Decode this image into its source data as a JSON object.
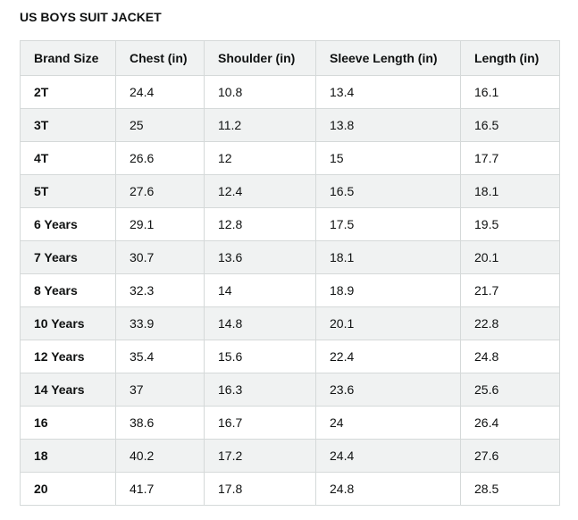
{
  "title": "US BOYS SUIT JACKET",
  "table": {
    "header": [
      "Brand Size",
      "Chest (in)",
      "Shoulder (in)",
      "Sleeve Length (in)",
      "Length (in)"
    ],
    "rows": [
      [
        "2T",
        24.4,
        10.8,
        13.4,
        16.1
      ],
      [
        "3T",
        25,
        11.2,
        13.8,
        16.5
      ],
      [
        "4T",
        26.6,
        12,
        15,
        17.7
      ],
      [
        "5T",
        27.6,
        12.4,
        16.5,
        18.1
      ],
      [
        "6 Years",
        29.1,
        12.8,
        17.5,
        19.5
      ],
      [
        "7 Years",
        30.7,
        13.6,
        18.1,
        20.1
      ],
      [
        "8 Years",
        32.3,
        14,
        18.9,
        21.7
      ],
      [
        "10 Years",
        33.9,
        14.8,
        20.1,
        22.8
      ],
      [
        "12 Years",
        35.4,
        15.6,
        22.4,
        24.8
      ],
      [
        "14 Years",
        37,
        16.3,
        23.6,
        25.6
      ],
      [
        "16",
        38.6,
        16.7,
        24,
        26.4
      ],
      [
        "18",
        40.2,
        17.2,
        24.4,
        27.6
      ],
      [
        "20",
        41.7,
        17.8,
        24.8,
        28.5
      ]
    ]
  }
}
